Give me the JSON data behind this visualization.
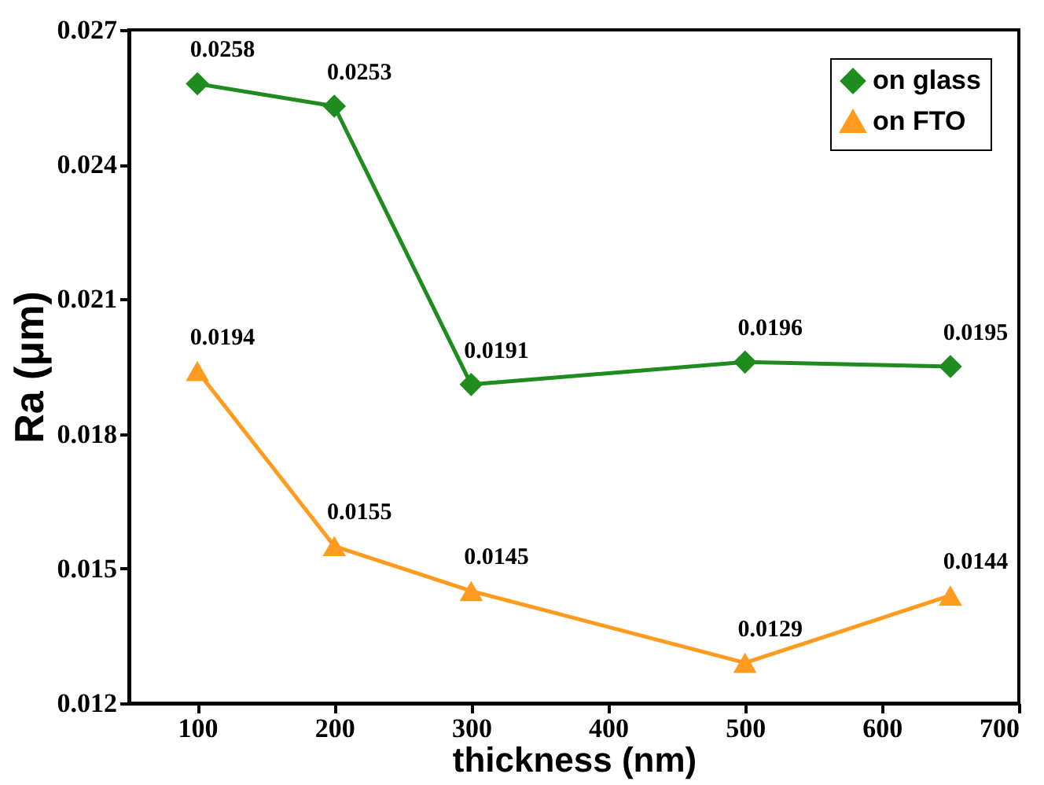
{
  "chart_data": {
    "type": "line",
    "xlabel": "thickness (nm)",
    "ylabel": "Ra (μm)",
    "x": [
      100,
      200,
      300,
      500,
      650
    ],
    "series": [
      {
        "name": "on glass",
        "color": "#1e8c1e",
        "marker": "diamond",
        "values": [
          0.0258,
          0.0253,
          0.0191,
          0.0196,
          0.0195
        ]
      },
      {
        "name": "on FTO",
        "color": "#ff9b1e",
        "marker": "triangle",
        "values": [
          0.0194,
          0.0155,
          0.0145,
          0.0129,
          0.0144
        ]
      }
    ],
    "xlim": [
      50,
      700
    ],
    "xticks": [
      100,
      200,
      300,
      400,
      500,
      600,
      700
    ],
    "ylim": [
      0.012,
      0.027
    ],
    "yticks": [
      0.012,
      0.015,
      0.018,
      0.021,
      0.024,
      0.027
    ],
    "data_labels": true,
    "grid": false,
    "legend": "top right",
    "line_style": "solid"
  }
}
